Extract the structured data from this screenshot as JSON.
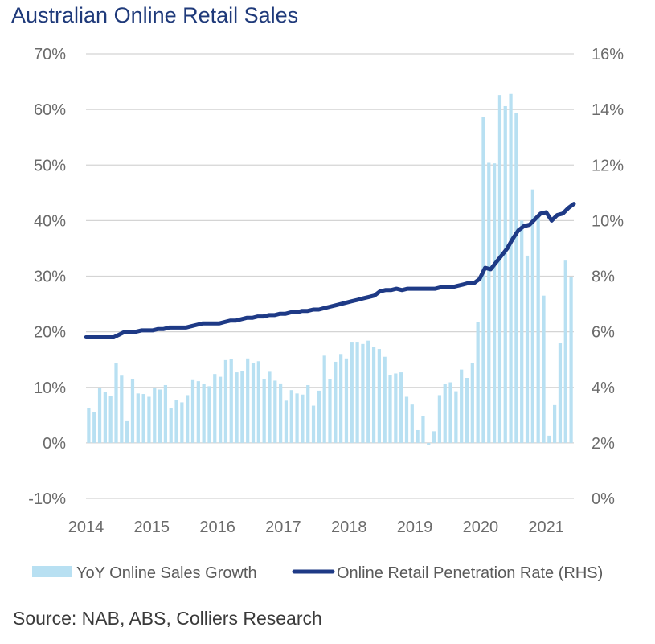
{
  "colors": {
    "bar": "#b8e0f2",
    "line": "#1e3a86",
    "grid": "#d4d4d4",
    "title": "#1f3a7a"
  },
  "chart_data": {
    "type": "bar",
    "title": "Australian Online Retail Sales",
    "source": "Source: NAB, ABS, Colliers Research",
    "x_ticks": [
      "2014",
      "2015",
      "2016",
      "2017",
      "2018",
      "2019",
      "2020",
      "2021"
    ],
    "x_range": [
      2014,
      2021.42
    ],
    "ylim_left": [
      -10,
      70
    ],
    "ylim_right": [
      0,
      16
    ],
    "y_left_ticks": [
      "70%",
      "60%",
      "50%",
      "40%",
      "30%",
      "20%",
      "10%",
      "0%",
      "-10%"
    ],
    "y_right_ticks": [
      "16%",
      "14%",
      "12%",
      "10%",
      "8%",
      "6%",
      "4%",
      "2%",
      "0%"
    ],
    "legend": [
      "YoY Online Sales Growth",
      "Online Retail Penetration Rate (RHS)"
    ],
    "series": [
      {
        "name": "YoY Online Sales Growth",
        "axis": "left",
        "type": "bar",
        "values": [
          6.3,
          5.5,
          9.9,
          9.2,
          8.5,
          14.3,
          12.1,
          3.9,
          11.5,
          8.9,
          8.8,
          8.3,
          9.9,
          9.6,
          10.4,
          6.2,
          7.7,
          7.3,
          8.6,
          11.3,
          11.1,
          10.6,
          10.2,
          12.4,
          11.9,
          14.9,
          15.1,
          12.7,
          13.0,
          15.2,
          14.4,
          14.7,
          11.5,
          12.8,
          11.2,
          10.7,
          7.6,
          9.5,
          8.9,
          8.7,
          10.4,
          6.7,
          9.4,
          15.7,
          11.5,
          14.6,
          16.0,
          15.2,
          18.2,
          18.2,
          17.8,
          18.4,
          17.2,
          16.9,
          15.5,
          12.2,
          12.5,
          12.7,
          8.3,
          6.9,
          2.3,
          4.9,
          -0.4,
          2.1,
          8.6,
          10.6,
          10.9,
          9.3,
          13.2,
          11.7,
          14.4,
          21.7,
          58.6,
          50.4,
          50.3,
          62.6,
          60.6,
          62.8,
          59.3,
          40.0,
          33.7,
          45.6,
          40.8,
          26.5,
          1.3,
          6.8,
          18.0,
          32.8,
          29.9
        ]
      },
      {
        "name": "Online Retail Penetration Rate (RHS)",
        "axis": "right",
        "type": "line",
        "values": [
          5.8,
          5.8,
          5.8,
          5.8,
          5.8,
          5.8,
          5.9,
          6.0,
          6.0,
          6.0,
          6.05,
          6.05,
          6.05,
          6.1,
          6.1,
          6.15,
          6.15,
          6.15,
          6.15,
          6.2,
          6.25,
          6.3,
          6.3,
          6.3,
          6.3,
          6.35,
          6.4,
          6.4,
          6.45,
          6.5,
          6.5,
          6.55,
          6.55,
          6.6,
          6.6,
          6.65,
          6.65,
          6.7,
          6.7,
          6.75,
          6.75,
          6.8,
          6.8,
          6.85,
          6.9,
          6.95,
          7.0,
          7.05,
          7.1,
          7.15,
          7.2,
          7.25,
          7.3,
          7.45,
          7.5,
          7.5,
          7.55,
          7.5,
          7.55,
          7.55,
          7.55,
          7.55,
          7.55,
          7.55,
          7.6,
          7.6,
          7.6,
          7.65,
          7.7,
          7.75,
          7.75,
          7.9,
          8.3,
          8.25,
          8.5,
          8.75,
          9.0,
          9.35,
          9.65,
          9.8,
          9.85,
          10.05,
          10.25,
          10.3,
          10.0,
          10.2,
          10.25,
          10.45,
          10.6
        ]
      }
    ]
  }
}
